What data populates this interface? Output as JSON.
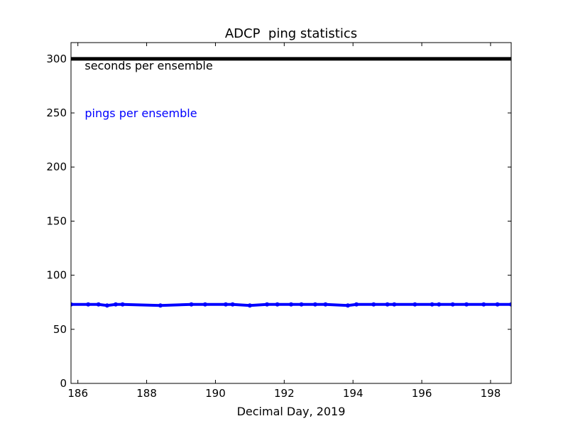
{
  "chart_data": {
    "type": "line",
    "title": "ADCP  ping statistics",
    "xlabel": "Decimal Day, 2019",
    "ylabel": "",
    "xlim": [
      185.8,
      198.6
    ],
    "ylim": [
      0,
      315
    ],
    "xticks": [
      186,
      188,
      190,
      192,
      194,
      196,
      198
    ],
    "yticks": [
      0,
      50,
      100,
      150,
      200,
      250,
      300
    ],
    "grid": false,
    "series": [
      {
        "name": "seconds per ensemble",
        "color": "#000000",
        "x": [
          185.8,
          198.6
        ],
        "y": [
          300,
          300
        ]
      },
      {
        "name": "pings per ensemble",
        "color": "#0000ff",
        "x": [
          185.8,
          186.3,
          186.6,
          186.85,
          187.1,
          187.3,
          188.4,
          189.3,
          189.7,
          190.3,
          190.5,
          191.0,
          191.5,
          191.8,
          192.2,
          192.5,
          192.9,
          193.2,
          193.85,
          194.1,
          194.6,
          195.0,
          195.2,
          195.8,
          196.3,
          196.5,
          196.9,
          197.3,
          197.8,
          198.2,
          198.6
        ],
        "y": [
          73,
          73,
          73,
          72,
          73,
          73,
          72,
          73,
          73,
          73,
          73,
          72,
          73,
          73,
          73,
          73,
          73,
          73,
          72,
          73,
          73,
          73,
          73,
          73,
          73,
          73,
          73,
          73,
          73,
          73,
          73
        ]
      }
    ],
    "annotations": [
      {
        "text": "seconds per ensemble",
        "color": "#000000",
        "x": 186.2,
        "y": 290
      },
      {
        "text": "pings per ensemble",
        "color": "#0000ff",
        "x": 186.2,
        "y": 246
      }
    ]
  }
}
